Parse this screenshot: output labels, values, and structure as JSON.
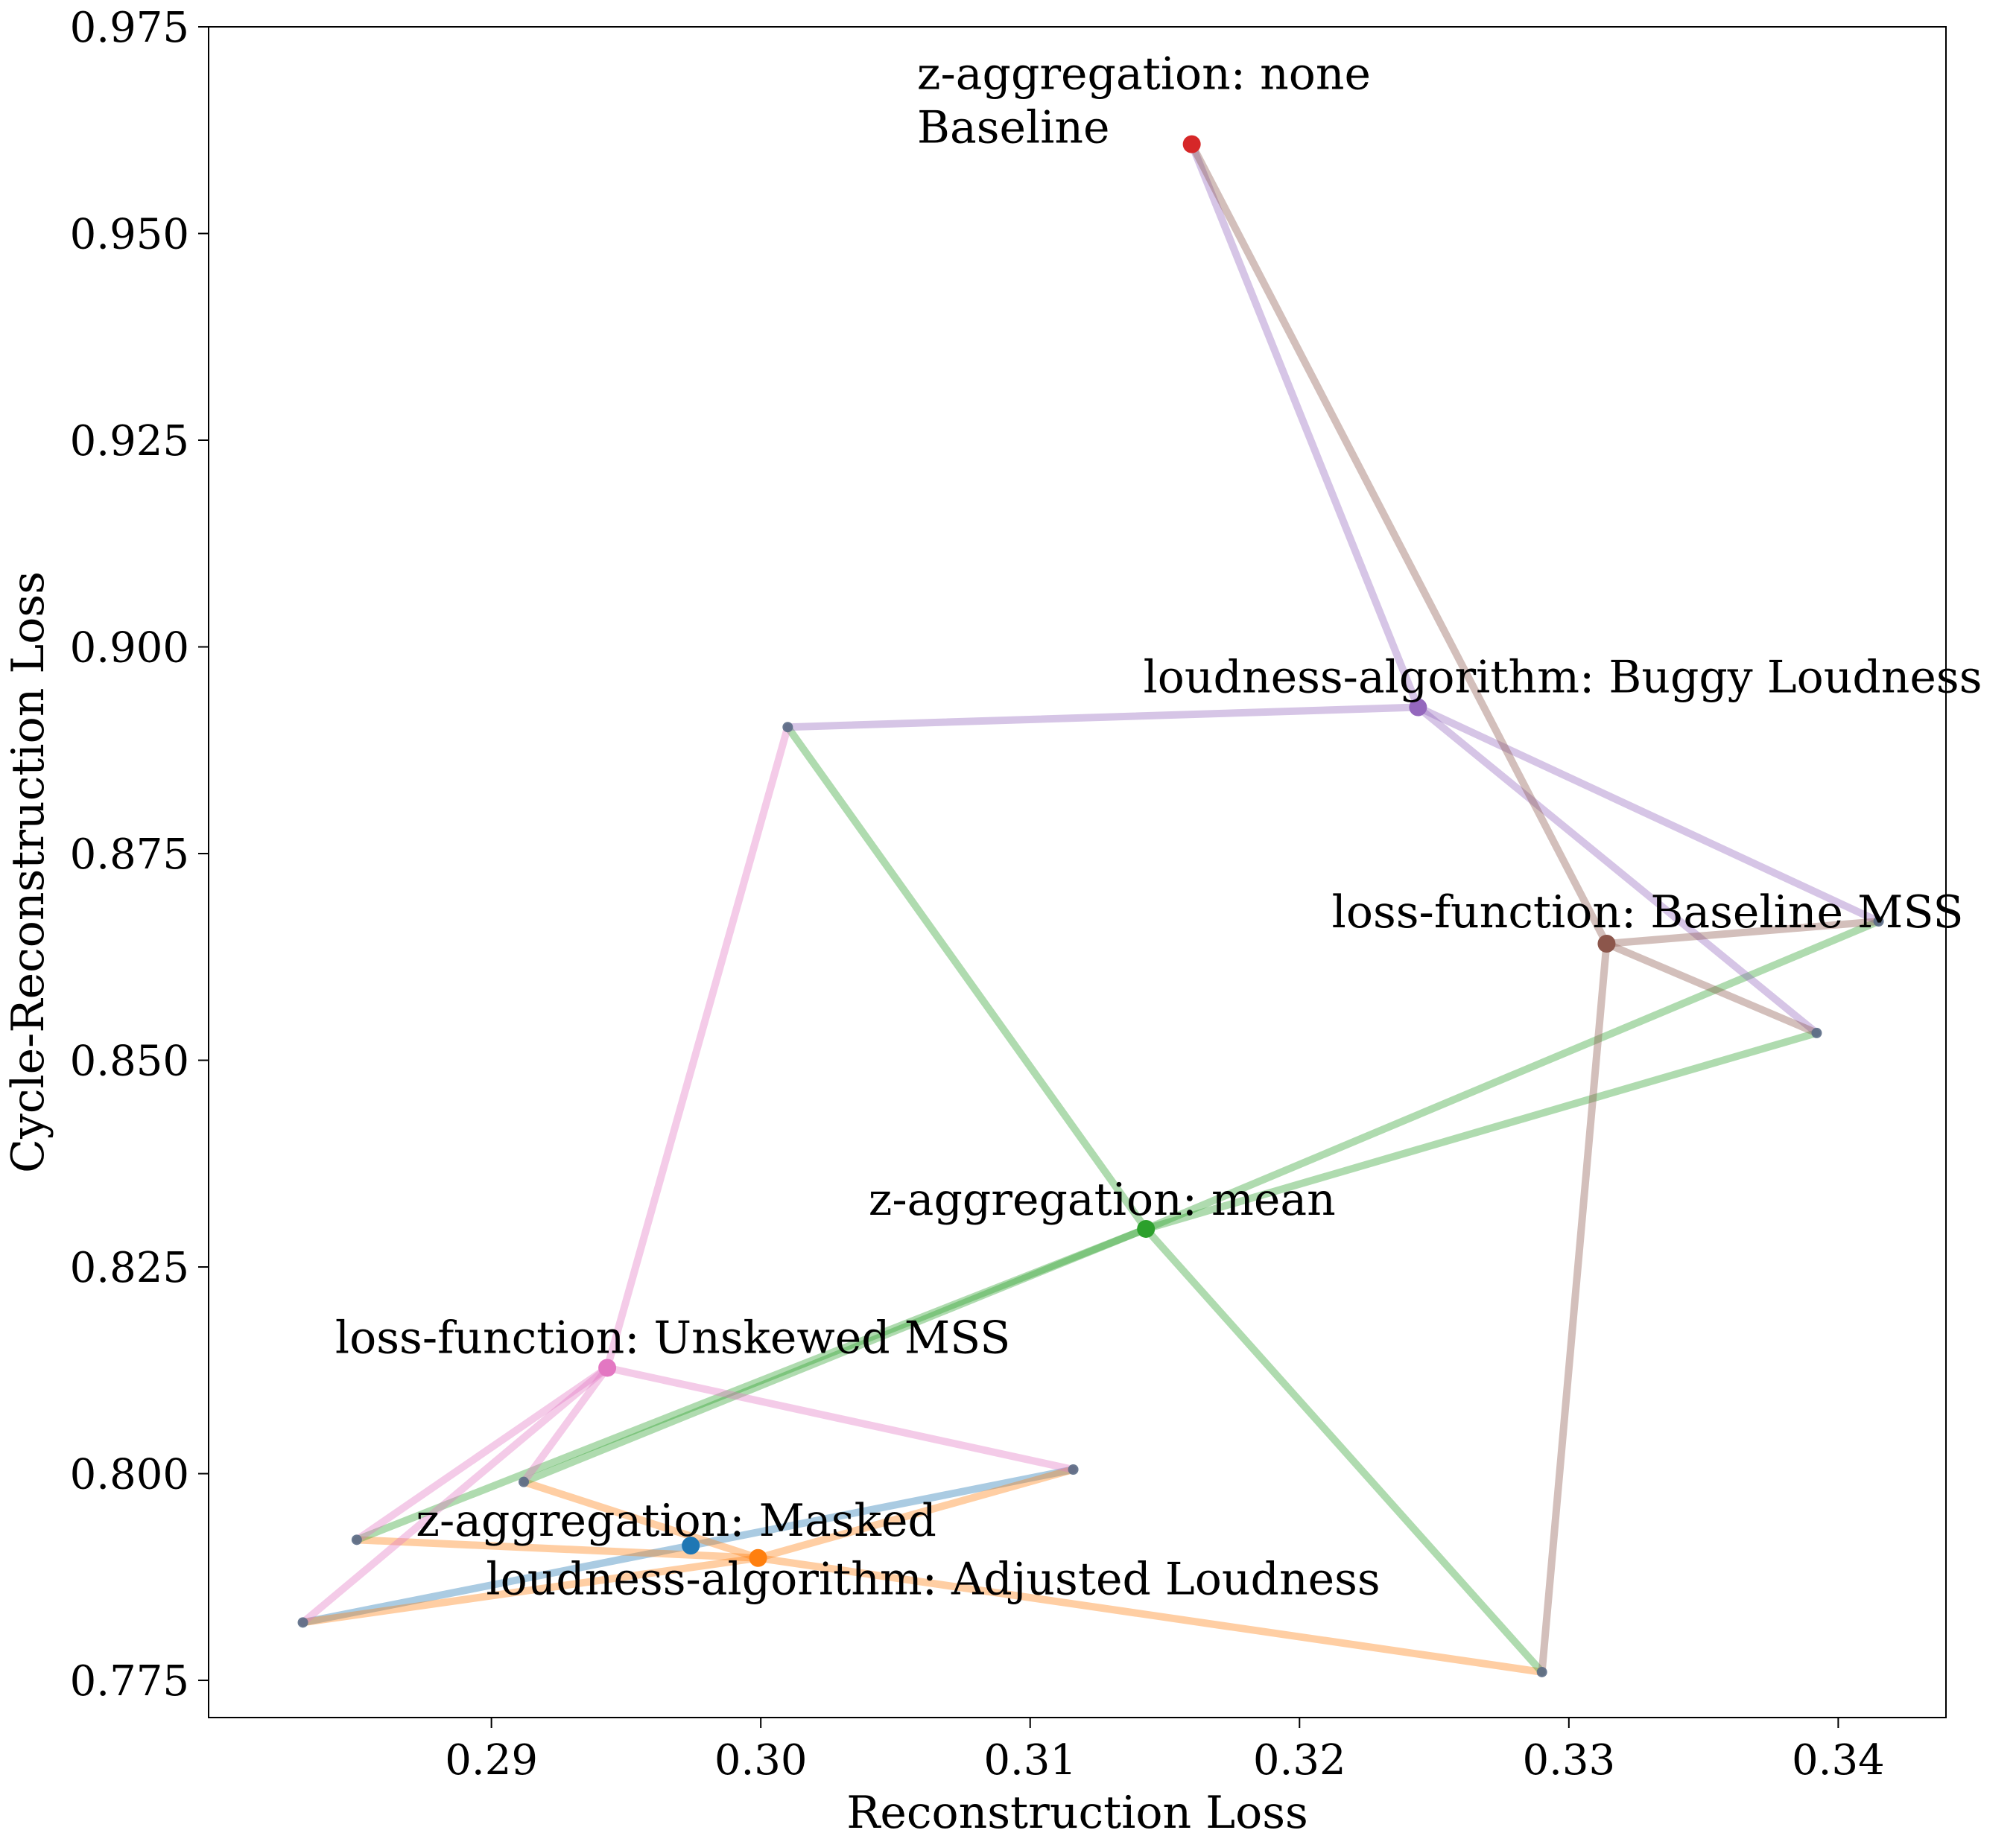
{
  "chart_data": {
    "type": "scatter",
    "title": "",
    "xlabel": "Reconstruction Loss",
    "ylabel": "Cycle-Reconstruction Loss",
    "xlim": [
      0.2795,
      0.344
    ],
    "ylim": [
      0.7705,
      0.975
    ],
    "xticks": [
      0.29,
      0.3,
      0.31,
      0.32,
      0.33,
      0.34
    ],
    "yticks": [
      0.775,
      0.8,
      0.825,
      0.85,
      0.875,
      0.9,
      0.925,
      0.95,
      0.975
    ],
    "xtick_labels": [
      "0.29",
      "0.30",
      "0.31",
      "0.32",
      "0.33",
      "0.34"
    ],
    "ytick_labels": [
      "0.775",
      "0.800",
      "0.825",
      "0.850",
      "0.875",
      "0.900",
      "0.925",
      "0.950",
      "0.975"
    ],
    "grid": false,
    "points": [
      {
        "x": 0.283,
        "y": 0.782
      },
      {
        "x": 0.285,
        "y": 0.792
      },
      {
        "x": 0.2912,
        "y": 0.799
      },
      {
        "x": 0.301,
        "y": 0.8903
      },
      {
        "x": 0.3116,
        "y": 0.8005
      },
      {
        "x": 0.329,
        "y": 0.776
      },
      {
        "x": 0.3392,
        "y": 0.8533
      },
      {
        "x": 0.3415,
        "y": 0.8668
      }
    ],
    "series": [
      {
        "color": "#1f77b4",
        "center": {
          "x": 0.2974,
          "y": 0.7913
        },
        "label": "z-aggregation: Masked",
        "label_anchor": {
          "x": 0.2872,
          "y": 0.7925
        },
        "links": [
          0,
          4
        ]
      },
      {
        "color": "#ff7f0e",
        "center": {
          "x": 0.2999,
          "y": 0.7898
        },
        "label": "loudness-algorithm: Adjusted Loudness",
        "label_anchor": {
          "x": 0.2898,
          "y": 0.7854
        },
        "links": [
          0,
          1,
          2,
          4,
          5
        ]
      },
      {
        "color": "#2ca02c",
        "center": {
          "x": 0.3143,
          "y": 0.8296
        },
        "label": "z-aggregation: mean",
        "label_anchor": {
          "x": 0.304,
          "y": 0.8313
        },
        "links": [
          1,
          2,
          3,
          5,
          6,
          7
        ]
      },
      {
        "color": "#d62728",
        "center": {
          "x": 0.316,
          "y": 0.9608
        },
        "label": "z-aggregation: none\nBaseline",
        "label_anchor": {
          "x": 0.3058,
          "y": 0.9675
        },
        "links": []
      },
      {
        "color": "#9467bd",
        "center": {
          "x": 0.3244,
          "y": 0.8927
        },
        "label": "loudness-algorithm: Buggy Loudness",
        "label_anchor": {
          "x": 0.3142,
          "y": 0.8945
        },
        "links": [
          3,
          6,
          7
        ],
        "extra_links": [
          {
            "x": 0.316,
            "y": 0.9608
          }
        ]
      },
      {
        "color": "#8c564b",
        "center": {
          "x": 0.3314,
          "y": 0.8641
        },
        "label": "loss-function: Baseline MSS",
        "label_anchor": {
          "x": 0.3212,
          "y": 0.8661
        },
        "links": [
          5,
          6,
          7
        ],
        "extra_links": [
          {
            "x": 0.316,
            "y": 0.9608
          }
        ]
      },
      {
        "color": "#e377c2",
        "center": {
          "x": 0.2943,
          "y": 0.8128
        },
        "label": "loss-function: Unskewed MSS",
        "label_anchor": {
          "x": 0.2842,
          "y": 0.8146
        },
        "links": [
          0,
          1,
          2,
          3,
          4
        ]
      }
    ]
  }
}
